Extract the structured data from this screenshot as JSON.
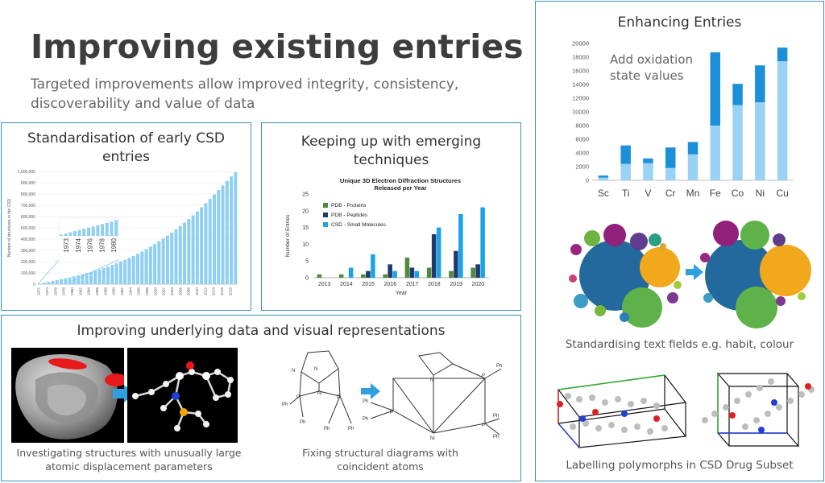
{
  "header": {
    "title": "Improving existing entries",
    "subtitle_line1": "Targeted improvements allow improved integrity, consistency,",
    "subtitle_line2": "discoverability and value of data"
  },
  "panels": {
    "standardisation": {
      "title_line1": "Standardisation of early CSD",
      "title_line2": "entries"
    },
    "emerging": {
      "title_line1": "Keeping up with emerging",
      "title_line2": "techniques"
    },
    "underlying": {
      "title": "Improving underlying data and visual representations",
      "caption_left_line1": "Investigating structures with unusually large",
      "caption_left_line2": "atomic displacement parameters",
      "caption_right_line1": "Fixing structural diagrams with",
      "caption_right_line2": "coincident atoms"
    },
    "enhancing": {
      "title": "Enhancing Entries",
      "annotation_line1": "Add oxidation",
      "annotation_line2": "state values",
      "caption_bubbles": "Standardising text fields e.g. habit, colour",
      "caption_polymorphs": "Labelling polymorphs in CSD Drug Subset"
    }
  },
  "chart_data": [
    {
      "id": "csd-growth",
      "type": "bar",
      "ylabel": "Number of structures in the CSD",
      "yticks": [
        "0",
        "100,000",
        "200,000",
        "300,000",
        "400,000",
        "500,000",
        "600,000",
        "700,000",
        "800,000",
        "900,000",
        "1,000,000"
      ],
      "ylim": [
        0,
        1000000
      ],
      "xticks": [
        "1972",
        "1974",
        "1976",
        "1978",
        "1980",
        "1982",
        "1984",
        "1986",
        "1988",
        "1990",
        "1992",
        "1994",
        "1996",
        "1998",
        "2000",
        "2002",
        "2004",
        "2006",
        "2008",
        "2010",
        "2012",
        "2014",
        "2016",
        "2018"
      ],
      "values": [
        5000,
        12000,
        20000,
        28000,
        36000,
        44000,
        52000,
        60000,
        69000,
        78000,
        88000,
        98000,
        108000,
        119000,
        130000,
        142000,
        155000,
        170000,
        185000,
        200000,
        216000,
        233000,
        251000,
        270000,
        290000,
        311000,
        333000,
        356000,
        380000,
        405000,
        431000,
        458000,
        486000,
        515000,
        546000,
        578000,
        611000,
        646000,
        682000,
        719000,
        757000,
        796000,
        836000,
        876000,
        916000,
        956000,
        995000
      ],
      "zoom_xticks": [
        "1973",
        "1974",
        "1976",
        "1978",
        "1980"
      ],
      "zoom_values": [
        3000,
        6000,
        9000,
        12000,
        15000,
        18000,
        21000,
        24000,
        27000,
        30000,
        33000,
        36000,
        40000
      ]
    },
    {
      "id": "electron-diffraction",
      "type": "bar",
      "title_line1": "Unique 3D Electron Diffraction Structures",
      "title_line2": "Released per Year",
      "xlabel": "Year",
      "ylabel": "Number of Entries",
      "ylim": [
        0,
        25
      ],
      "yticks": [
        "0",
        "5",
        "10",
        "15",
        "20",
        "25"
      ],
      "categories": [
        "2013",
        "2014",
        "2015",
        "2016",
        "2017",
        "2018",
        "2019",
        "2020"
      ],
      "series": [
        {
          "name": "PDB - Proteins",
          "color": "#4e8a3a",
          "values": [
            1,
            1,
            1,
            1,
            6,
            3,
            2,
            3
          ]
        },
        {
          "name": "PDB - Peptides",
          "color": "#1f3a6e",
          "values": [
            0,
            0,
            2,
            4,
            3,
            13,
            8,
            4
          ]
        },
        {
          "name": "CSD - Small Molecules",
          "color": "#1aa3e8",
          "values": [
            0,
            3,
            7,
            2,
            2,
            15,
            19,
            21
          ]
        }
      ],
      "legend": "top-left"
    },
    {
      "id": "oxidation-states",
      "type": "bar",
      "stacked": true,
      "ylim": [
        0,
        20000
      ],
      "yticks": [
        "0",
        "2000",
        "4000",
        "6000",
        "8000",
        "10000",
        "12000",
        "14000",
        "16000",
        "18000",
        "20000"
      ],
      "categories": [
        "Sc",
        "Ti",
        "V",
        "Cr",
        "Mn",
        "Fe",
        "Co",
        "Ni",
        "Cu"
      ],
      "series": [
        {
          "color": "#9ad2f5",
          "values": [
            400,
            2400,
            2500,
            1800,
            3800,
            8000,
            11000,
            11400,
            17400
          ]
        },
        {
          "color": "#1c8fd9",
          "values": [
            300,
            2700,
            700,
            3000,
            1800,
            10700,
            3100,
            5400,
            2000
          ]
        }
      ]
    }
  ]
}
